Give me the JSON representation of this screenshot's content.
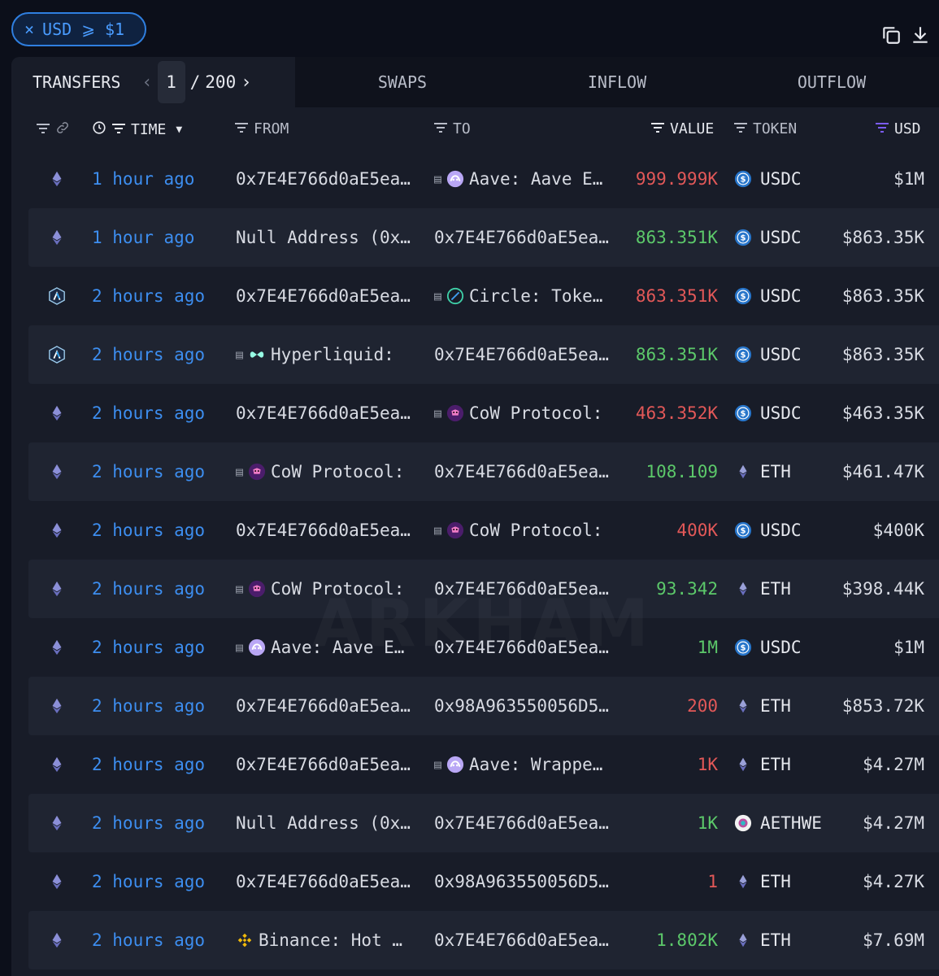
{
  "filter_chip": {
    "close": "×",
    "label": "USD ⩾ $1"
  },
  "tabs": {
    "transfers": "TRANSFERS",
    "page_current": "1",
    "page_sep": "/",
    "page_total": "200",
    "swaps": "SWAPS",
    "inflow": "INFLOW",
    "outflow": "OUTFLOW"
  },
  "headers": {
    "time": "TIME",
    "from": "FROM",
    "to": "TO",
    "value": "VALUE",
    "token": "TOKEN",
    "usd": "USD"
  },
  "colors": {
    "accent_blue": "#3d8ef0",
    "value_red": "#e25858",
    "value_green": "#5cc96a",
    "usd_header_purple": "#7b5cf0"
  },
  "watermark": "ARKHAM",
  "rows": [
    {
      "chain": "ethereum-icon",
      "time": "1 hour ago",
      "from": "0x7E4E766d0aE5ea…",
      "from_entity": "",
      "from_contract": false,
      "to": "Aave: Aave E…",
      "to_entity": "aave",
      "to_contract": true,
      "value": "999.999K",
      "dir": "red",
      "token": "USDC",
      "token_icon": "usdc",
      "usd": "$1M"
    },
    {
      "chain": "ethereum-icon",
      "time": "1 hour ago",
      "from": "Null Address (0x…",
      "from_entity": "",
      "from_contract": false,
      "to": "0x7E4E766d0aE5ea…",
      "to_entity": "",
      "to_contract": false,
      "value": "863.351K",
      "dir": "green",
      "token": "USDC",
      "token_icon": "usdc",
      "usd": "$863.35K"
    },
    {
      "chain": "arbitrum-icon",
      "time": "2 hours ago",
      "from": "0x7E4E766d0aE5ea…",
      "from_entity": "",
      "from_contract": false,
      "to": "Circle: Toke…",
      "to_entity": "circle",
      "to_contract": true,
      "value": "863.351K",
      "dir": "red",
      "token": "USDC",
      "token_icon": "usdc",
      "usd": "$863.35K"
    },
    {
      "chain": "arbitrum-icon",
      "time": "2 hours ago",
      "from": "Hyperliquid:",
      "from_entity": "hyperliquid",
      "from_contract": true,
      "to": "0x7E4E766d0aE5ea…",
      "to_entity": "",
      "to_contract": false,
      "value": "863.351K",
      "dir": "green",
      "token": "USDC",
      "token_icon": "usdc",
      "usd": "$863.35K"
    },
    {
      "chain": "ethereum-icon",
      "time": "2 hours ago",
      "from": "0x7E4E766d0aE5ea…",
      "from_entity": "",
      "from_contract": false,
      "to": "CoW Protocol:",
      "to_entity": "cow",
      "to_contract": true,
      "value": "463.352K",
      "dir": "red",
      "token": "USDC",
      "token_icon": "usdc",
      "usd": "$463.35K"
    },
    {
      "chain": "ethereum-icon",
      "time": "2 hours ago",
      "from": "CoW Protocol:",
      "from_entity": "cow",
      "from_contract": true,
      "to": "0x7E4E766d0aE5ea…",
      "to_entity": "",
      "to_contract": false,
      "value": "108.109",
      "dir": "green",
      "token": "ETH",
      "token_icon": "eth",
      "usd": "$461.47K"
    },
    {
      "chain": "ethereum-icon",
      "time": "2 hours ago",
      "from": "0x7E4E766d0aE5ea…",
      "from_entity": "",
      "from_contract": false,
      "to": "CoW Protocol:",
      "to_entity": "cow",
      "to_contract": true,
      "value": "400K",
      "dir": "red",
      "token": "USDC",
      "token_icon": "usdc",
      "usd": "$400K"
    },
    {
      "chain": "ethereum-icon",
      "time": "2 hours ago",
      "from": "CoW Protocol:",
      "from_entity": "cow",
      "from_contract": true,
      "to": "0x7E4E766d0aE5ea…",
      "to_entity": "",
      "to_contract": false,
      "value": "93.342",
      "dir": "green",
      "token": "ETH",
      "token_icon": "eth",
      "usd": "$398.44K"
    },
    {
      "chain": "ethereum-icon",
      "time": "2 hours ago",
      "from": "Aave: Aave E…",
      "from_entity": "aave",
      "from_contract": true,
      "to": "0x7E4E766d0aE5ea…",
      "to_entity": "",
      "to_contract": false,
      "value": "1M",
      "dir": "green",
      "token": "USDC",
      "token_icon": "usdc",
      "usd": "$1M"
    },
    {
      "chain": "ethereum-icon",
      "time": "2 hours ago",
      "from": "0x7E4E766d0aE5ea…",
      "from_entity": "",
      "from_contract": false,
      "to": "0x98A963550056D5…",
      "to_entity": "",
      "to_contract": false,
      "value": "200",
      "dir": "red",
      "token": "ETH",
      "token_icon": "eth",
      "usd": "$853.72K"
    },
    {
      "chain": "ethereum-icon",
      "time": "2 hours ago",
      "from": "0x7E4E766d0aE5ea…",
      "from_entity": "",
      "from_contract": false,
      "to": "Aave: Wrappe…",
      "to_entity": "aave",
      "to_contract": true,
      "value": "1K",
      "dir": "red",
      "token": "ETH",
      "token_icon": "eth",
      "usd": "$4.27M"
    },
    {
      "chain": "ethereum-icon",
      "time": "2 hours ago",
      "from": "Null Address (0x…",
      "from_entity": "",
      "from_contract": false,
      "to": "0x7E4E766d0aE5ea…",
      "to_entity": "",
      "to_contract": false,
      "value": "1K",
      "dir": "green",
      "token": "AETHWE",
      "token_icon": "aeth",
      "usd": "$4.27M"
    },
    {
      "chain": "ethereum-icon",
      "time": "2 hours ago",
      "from": "0x7E4E766d0aE5ea…",
      "from_entity": "",
      "from_contract": false,
      "to": "0x98A963550056D5…",
      "to_entity": "",
      "to_contract": false,
      "value": "1",
      "dir": "red",
      "token": "ETH",
      "token_icon": "eth",
      "usd": "$4.27K"
    },
    {
      "chain": "ethereum-icon",
      "time": "2 hours ago",
      "from": "Binance: Hot …",
      "from_entity": "binance",
      "from_contract": false,
      "to": "0x7E4E766d0aE5ea…",
      "to_entity": "",
      "to_contract": false,
      "value": "1.802K",
      "dir": "green",
      "token": "ETH",
      "token_icon": "eth",
      "usd": "$7.69M"
    }
  ]
}
